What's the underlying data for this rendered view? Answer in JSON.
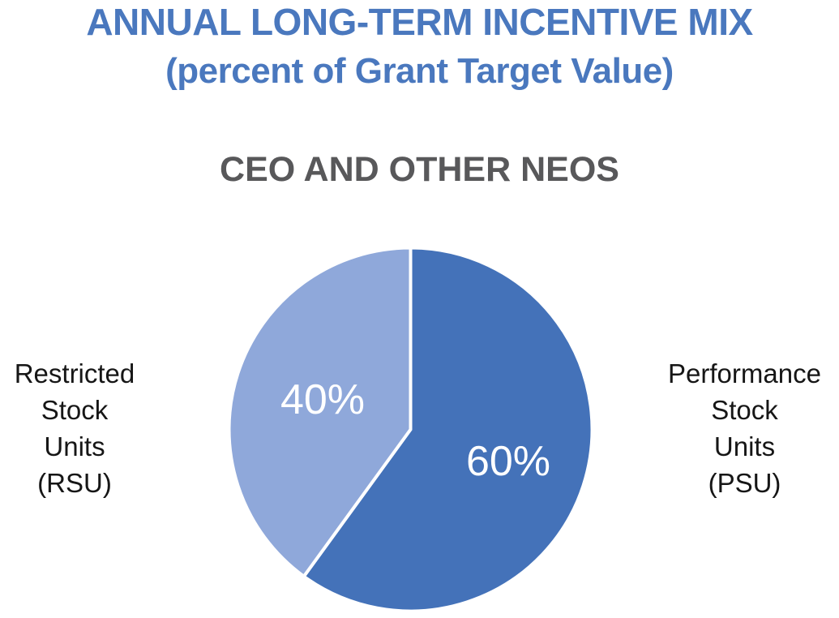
{
  "header": {
    "title_line1": "ANNUAL LONG-TERM INCENTIVE MIX",
    "title_line2": "(percent of Grant Target Value)",
    "section_heading": "CEO AND OTHER NEOS",
    "title_color": "#4A78BE",
    "heading_color": "#58585A"
  },
  "chart_data": {
    "type": "pie",
    "title": "ANNUAL LONG-TERM INCENTIVE MIX (percent of Grant Target Value)",
    "subtitle": "CEO AND OTHER NEOS",
    "start_angle_deg": 0,
    "direction": "clockwise",
    "separator_color": "#FFFFFF",
    "data_label_color": "#FFFFFF",
    "legend_position": "side-callouts",
    "slices": [
      {
        "id": "psu",
        "name": "Performance Stock Units (PSU)",
        "value": 60,
        "data_label": "60%",
        "color": "#4472B9",
        "callout": "Performance\nStock\nUnits\n(PSU)",
        "callout_side": "right"
      },
      {
        "id": "rsu",
        "name": "Restricted Stock Units (RSU)",
        "value": 40,
        "data_label": "40%",
        "color": "#8FA8DA",
        "callout": "Restricted\nStock\nUnits\n(RSU)",
        "callout_side": "left"
      }
    ]
  }
}
